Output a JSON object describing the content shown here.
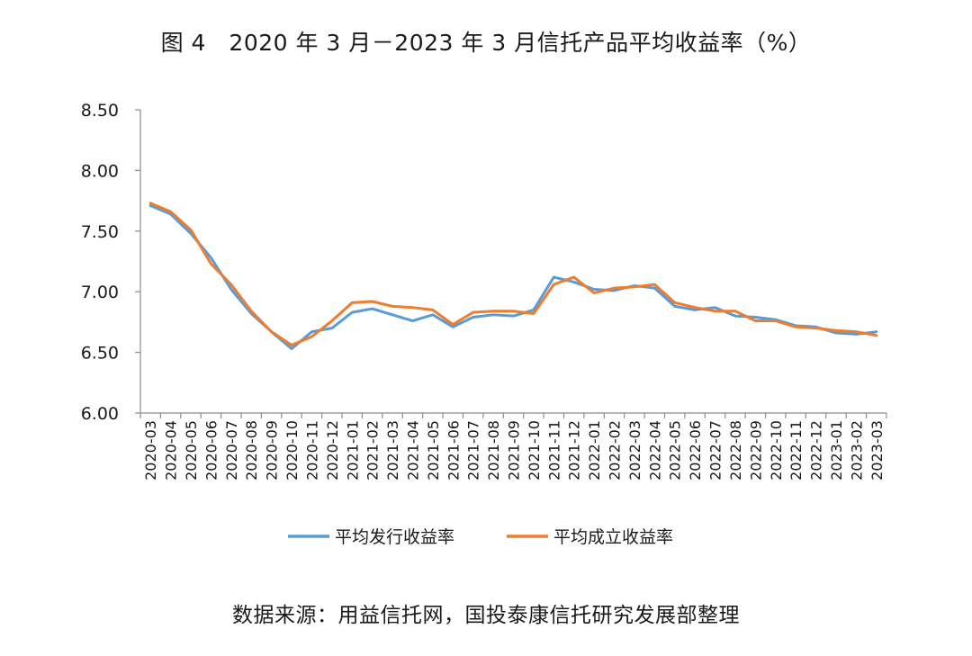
{
  "title": "图 4　2020 年 3 月－2023 年 3 月信托产品平均收益率（%）",
  "source": "数据来源：用益信托网，国投泰康信托研究发展部整理",
  "chart_data": {
    "type": "line",
    "title": "图 4　2020 年 3 月－2023 年 3 月信托产品平均收益率（%）",
    "xlabel": "",
    "ylabel": "",
    "ylim": [
      6.0,
      8.5
    ],
    "yticks": [
      "6.00",
      "6.50",
      "7.00",
      "7.50",
      "8.00",
      "8.50"
    ],
    "grid": false,
    "legend_position": "bottom",
    "categories": [
      "2020-03",
      "2020-04",
      "2020-05",
      "2020-06",
      "2020-07",
      "2020-08",
      "2020-09",
      "2020-10",
      "2020-11",
      "2020-12",
      "2021-01",
      "2021-02",
      "2021-03",
      "2021-04",
      "2021-05",
      "2021-06",
      "2021-07",
      "2021-08",
      "2021-09",
      "2021-10",
      "2021-11",
      "2021-12",
      "2022-01",
      "2022-02",
      "2022-03",
      "2022-04",
      "2022-05",
      "2022-06",
      "2022-07",
      "2022-08",
      "2022-09",
      "2022-10",
      "2022-11",
      "2022-12",
      "2023-01",
      "2023-02",
      "2023-03"
    ],
    "series": [
      {
        "name": "平均发行收益率",
        "color": "#5b9bd5",
        "values": [
          7.71,
          7.64,
          7.48,
          7.28,
          7.02,
          6.82,
          6.67,
          6.53,
          6.67,
          6.7,
          6.83,
          6.86,
          6.81,
          6.76,
          6.81,
          6.71,
          6.79,
          6.81,
          6.8,
          6.85,
          7.12,
          7.08,
          7.02,
          7.01,
          7.05,
          7.03,
          6.88,
          6.85,
          6.87,
          6.8,
          6.79,
          6.77,
          6.72,
          6.71,
          6.66,
          6.65,
          6.67
        ]
      },
      {
        "name": "平均成立收益率",
        "color": "#ed7d31",
        "values": [
          7.73,
          7.66,
          7.51,
          7.23,
          7.06,
          6.84,
          6.67,
          6.56,
          6.63,
          6.76,
          6.91,
          6.92,
          6.88,
          6.87,
          6.85,
          6.73,
          6.83,
          6.84,
          6.84,
          6.82,
          7.06,
          7.12,
          6.99,
          7.03,
          7.04,
          7.06,
          6.91,
          6.87,
          6.84,
          6.84,
          6.76,
          6.76,
          6.71,
          6.7,
          6.68,
          6.67,
          6.64
        ]
      }
    ]
  }
}
